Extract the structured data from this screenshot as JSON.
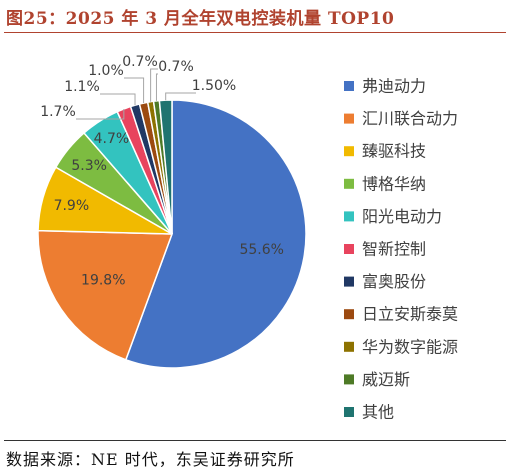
{
  "header": {
    "title": "图25：2025 年 3 月全年双电控装机量 TOP10"
  },
  "footer": {
    "source": "数据来源：NE 时代，东吴证券研究所"
  },
  "chart_data": {
    "type": "pie",
    "title": "",
    "legend_position": "right",
    "categories": [
      "弗迪动力",
      "汇川联合动力",
      "臻驱科技",
      "博格华纳",
      "阳光电动力",
      "智新控制",
      "富奥股份",
      "日立安斯泰莫",
      "华为数字能源",
      "威迈斯",
      "其他"
    ],
    "values": [
      55.6,
      19.8,
      7.9,
      5.3,
      4.7,
      1.7,
      1.1,
      1.0,
      0.7,
      0.7,
      1.5
    ],
    "data_labels": [
      "55.6%",
      "19.8%",
      "7.9%",
      "5.3%",
      "4.7%",
      "1.7%",
      "1.1%",
      "1.0%",
      "0.7%",
      "0.7%",
      "1.50%"
    ],
    "colors": [
      "#4472C4",
      "#ED7D31",
      "#F1BA00",
      "#7DBC41",
      "#33C3BF",
      "#E8445E",
      "#203864",
      "#9C4A10",
      "#8D7200",
      "#4E7A26",
      "#1F7470"
    ]
  }
}
